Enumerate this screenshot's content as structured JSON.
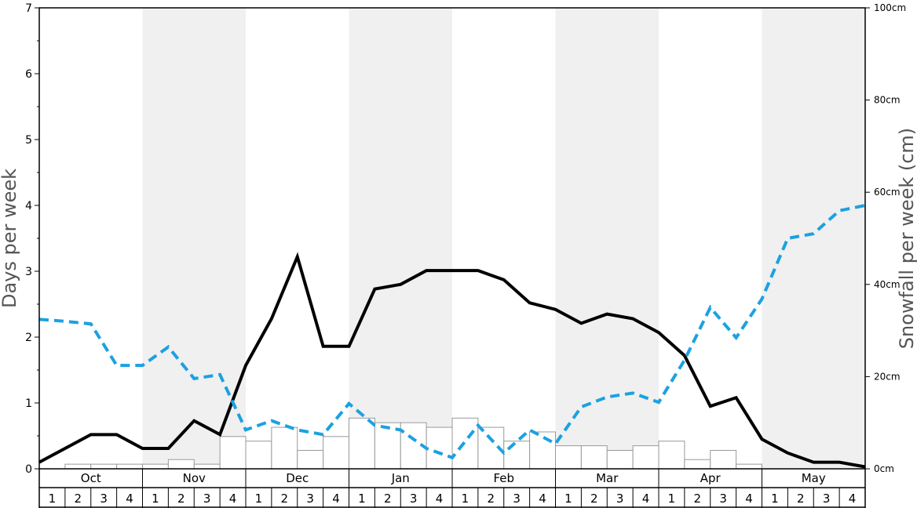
{
  "chart_data": {
    "type": "bar",
    "months": [
      "Oct",
      "Nov",
      "Dec",
      "Jan",
      "Feb",
      "Mar",
      "Apr",
      "May"
    ],
    "weeks": [
      "1",
      "2",
      "3",
      "4"
    ],
    "y_left": {
      "label": "Days per week",
      "min": 0,
      "max": 7,
      "ticks": [
        0,
        1,
        2,
        3,
        4,
        5,
        6,
        7
      ]
    },
    "y_right": {
      "label": "Snowfall per week (cm)",
      "min": 0,
      "max": 100,
      "ticks": [
        "0cm",
        "20cm",
        "40cm",
        "60cm",
        "80cm",
        "100cm"
      ],
      "tick_values": [
        0,
        20,
        40,
        60,
        80,
        100
      ]
    },
    "series": [
      {
        "kind": "bar",
        "axis": "right",
        "values": [
          0,
          1,
          1,
          1,
          1,
          2,
          1,
          7,
          6,
          9,
          4,
          7,
          11,
          10,
          10,
          9,
          11,
          9,
          6,
          8,
          5,
          5,
          4,
          5,
          6,
          2,
          4,
          1,
          0,
          0,
          0,
          0
        ],
        "color": "#ffffff",
        "stroke": "#999999"
      },
      {
        "kind": "line",
        "axis": "left",
        "values": [
          0.1,
          0.31,
          0.52,
          0.52,
          0.31,
          0.31,
          0.73,
          0.52,
          1.57,
          2.28,
          3.22,
          1.86,
          1.86,
          2.73,
          2.8,
          3.01,
          3.01,
          3.01,
          2.87,
          2.52,
          2.42,
          2.21,
          2.35,
          2.28,
          2.07,
          1.72,
          0.95,
          1.08,
          0.45,
          0.24,
          0.1,
          0.1,
          0.03
        ],
        "color": "#000000",
        "style": "solid"
      },
      {
        "kind": "line",
        "axis": "left",
        "values": [
          2.27,
          2.24,
          2.2,
          1.57,
          1.57,
          1.85,
          1.37,
          1.43,
          0.59,
          0.73,
          0.59,
          0.52,
          0.99,
          0.66,
          0.59,
          0.31,
          0.17,
          0.66,
          0.24,
          0.59,
          0.38,
          0.94,
          1.09,
          1.15,
          1.01,
          1.65,
          2.45,
          1.99,
          2.58,
          3.5,
          3.57,
          3.92,
          4.0
        ],
        "color": "#1ba1e2",
        "style": "dashed"
      }
    ],
    "shaded_months": [
      "Nov",
      "Jan",
      "Mar",
      "May"
    ],
    "grid": false
  }
}
